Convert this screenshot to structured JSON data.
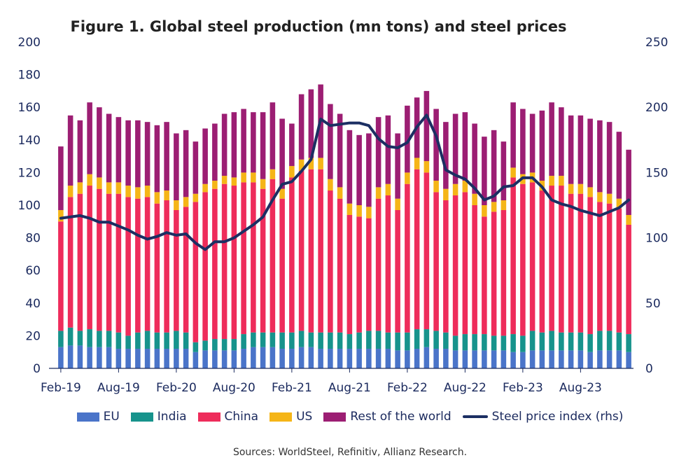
{
  "chart_data": {
    "type": "bar",
    "title": "Figure 1. Global steel production (mn tons) and steel prices",
    "source": "Sources: WorldSteel, Refinitiv, Allianz Research.",
    "stacked": true,
    "categories": [
      "Feb-19",
      "Mar-19",
      "Apr-19",
      "May-19",
      "Jun-19",
      "Jul-19",
      "Aug-19",
      "Sep-19",
      "Oct-19",
      "Nov-19",
      "Dec-19",
      "Jan-20",
      "Feb-20",
      "Mar-20",
      "Apr-20",
      "May-20",
      "Jun-20",
      "Jul-20",
      "Aug-20",
      "Sep-20",
      "Oct-20",
      "Nov-20",
      "Dec-20",
      "Jan-21",
      "Feb-21",
      "Mar-21",
      "Apr-21",
      "May-21",
      "Jun-21",
      "Jul-21",
      "Aug-21",
      "Sep-21",
      "Oct-21",
      "Nov-21",
      "Dec-21",
      "Jan-22",
      "Feb-22",
      "Mar-22",
      "Apr-22",
      "May-22",
      "Jun-22",
      "Jul-22",
      "Aug-22",
      "Sep-22",
      "Oct-22",
      "Nov-22",
      "Dec-22",
      "Jan-23",
      "Feb-23",
      "Mar-23",
      "Apr-23",
      "May-23",
      "Jun-23",
      "Jul-23",
      "Aug-23",
      "Sep-23",
      "Oct-23",
      "Nov-23",
      "Dec-23",
      "Jan-24"
    ],
    "x_tick_labels": [
      "Feb-19",
      "Aug-19",
      "Feb-20",
      "Aug-20",
      "Feb-21",
      "Aug-21",
      "Feb-22",
      "Aug-22",
      "Feb-23",
      "Aug-23"
    ],
    "ylim_left": [
      0,
      200
    ],
    "yticks_left": [
      0,
      20,
      40,
      60,
      80,
      100,
      120,
      140,
      160,
      180,
      200
    ],
    "ylim_right": [
      0,
      250
    ],
    "yticks_right": [
      0,
      50,
      100,
      150,
      200,
      250
    ],
    "legend_position": "bottom",
    "grid": false,
    "series": [
      {
        "name": "EU",
        "color": "#4a74c9",
        "values": [
          13,
          14,
          14,
          13,
          13,
          13,
          12,
          12,
          12,
          12,
          12,
          12,
          12,
          12,
          10,
          11,
          11,
          11,
          11,
          12,
          13,
          13,
          13,
          12,
          12,
          13,
          13,
          12,
          12,
          12,
          12,
          12,
          12,
          12,
          12,
          11,
          11,
          12,
          13,
          12,
          12,
          11,
          11,
          11,
          11,
          11,
          11,
          10,
          10,
          11,
          11,
          11,
          11,
          11,
          11,
          10,
          11,
          11,
          11,
          10
        ]
      },
      {
        "name": "India",
        "color": "#17938c",
        "values": [
          10,
          11,
          9,
          11,
          10,
          10,
          10,
          8,
          10,
          11,
          10,
          10,
          11,
          10,
          6,
          6,
          7,
          7,
          7,
          9,
          9,
          9,
          9,
          10,
          10,
          10,
          9,
          10,
          10,
          10,
          9,
          10,
          11,
          11,
          10,
          11,
          11,
          12,
          11,
          11,
          10,
          9,
          10,
          10,
          10,
          9,
          9,
          11,
          10,
          12,
          11,
          12,
          11,
          11,
          11,
          11,
          12,
          12,
          11,
          11
        ]
      },
      {
        "name": "China",
        "color": "#ee2c5b",
        "values": [
          67,
          80,
          84,
          88,
          87,
          84,
          85,
          85,
          82,
          82,
          79,
          81,
          74,
          77,
          86,
          91,
          92,
          95,
          94,
          93,
          92,
          88,
          94,
          82,
          95,
          98,
          100,
          100,
          87,
          82,
          73,
          71,
          69,
          81,
          84,
          75,
          91,
          98,
          96,
          85,
          81,
          86,
          87,
          79,
          72,
          76,
          77,
          96,
          93,
          91,
          87,
          89,
          90,
          85,
          85,
          84,
          79,
          78,
          76,
          67
        ]
      },
      {
        "name": "US",
        "color": "#f5b517",
        "values": [
          7,
          7,
          7,
          7,
          7,
          7,
          7,
          7,
          7,
          7,
          7,
          6,
          6,
          6,
          5,
          5,
          5,
          5,
          5,
          6,
          6,
          6,
          6,
          6,
          7,
          7,
          7,
          7,
          7,
          7,
          7,
          7,
          7,
          7,
          7,
          7,
          7,
          7,
          7,
          7,
          7,
          7,
          7,
          7,
          7,
          6,
          6,
          6,
          6,
          6,
          6,
          6,
          6,
          6,
          6,
          6,
          6,
          6,
          6,
          6
        ]
      },
      {
        "name": "Rest of the world",
        "color": "#9c1e73",
        "values": [
          39,
          43,
          38,
          44,
          43,
          42,
          40,
          40,
          41,
          39,
          41,
          42,
          41,
          41,
          32,
          34,
          35,
          38,
          40,
          39,
          37,
          41,
          41,
          43,
          26,
          40,
          42,
          45,
          46,
          45,
          45,
          43,
          45,
          43,
          42,
          40,
          41,
          37,
          43,
          44,
          41,
          43,
          42,
          43,
          42,
          44,
          36,
          40,
          40,
          36,
          43,
          45,
          42,
          42,
          42,
          42,
          44,
          44,
          41,
          40
        ]
      },
      {
        "name": "Steel price index (rhs)",
        "color": "#1c2f63",
        "axis": "right",
        "type": "line",
        "values": [
          115,
          116,
          117,
          115,
          112,
          112,
          109,
          106,
          102,
          99,
          101,
          104,
          102,
          103,
          96,
          91,
          97,
          97,
          100,
          105,
          110,
          116,
          129,
          141,
          143,
          151,
          160,
          191,
          186,
          187,
          188,
          188,
          186,
          176,
          170,
          169,
          173,
          185,
          194,
          178,
          152,
          148,
          145,
          138,
          129,
          132,
          139,
          140,
          146,
          146,
          139,
          129,
          126,
          124,
          121,
          119,
          117,
          120,
          123,
          129
        ]
      }
    ]
  }
}
